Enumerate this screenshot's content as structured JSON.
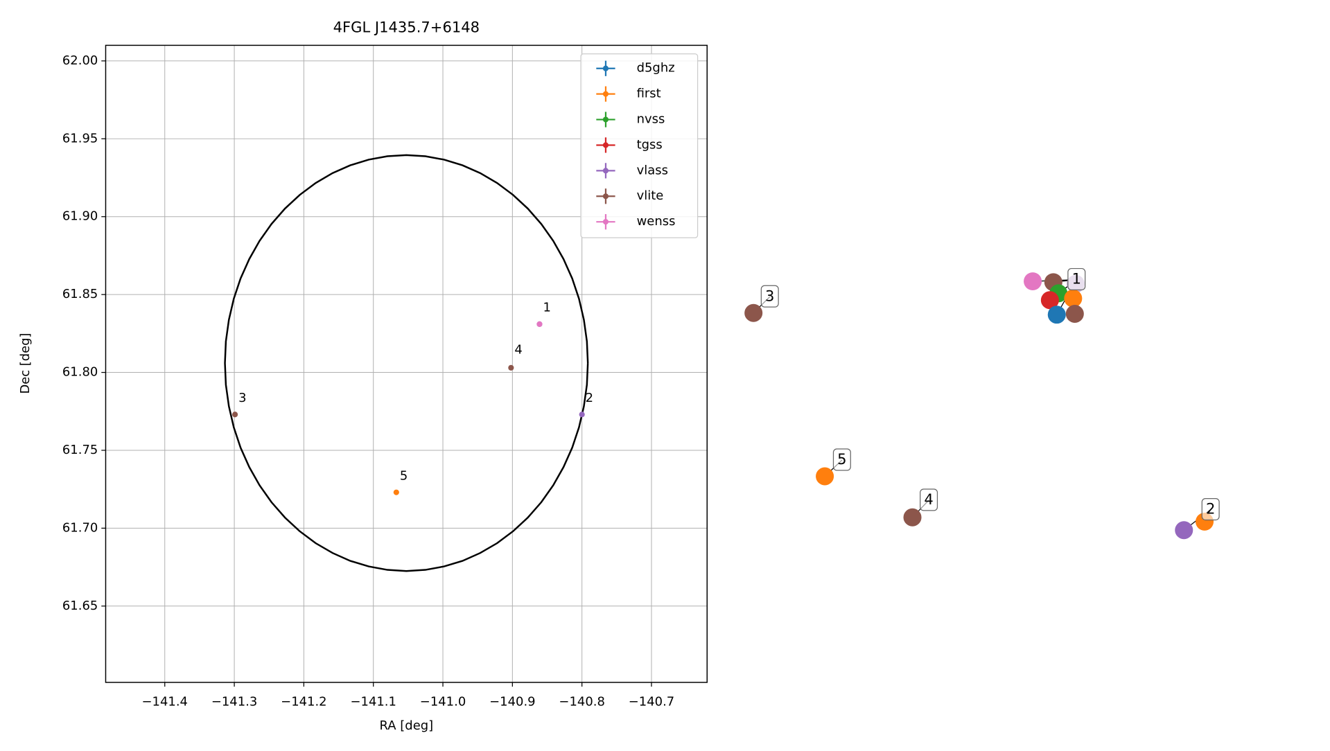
{
  "chart_data": {
    "type": "scatter",
    "title": "4FGL J1435.7+6148",
    "x_label": "RA [deg]",
    "y_label": "Dec [deg]",
    "xlim": [
      -141.485,
      -140.62
    ],
    "ylim": [
      61.601,
      62.01
    ],
    "xticks": [
      {
        "value": -141.4,
        "label": "−141.4"
      },
      {
        "value": -141.3,
        "label": "−141.3"
      },
      {
        "value": -141.2,
        "label": "−141.2"
      },
      {
        "value": -141.1,
        "label": "−141.1"
      },
      {
        "value": -141.0,
        "label": "−141.0"
      },
      {
        "value": -140.9,
        "label": "−140.9"
      },
      {
        "value": -140.8,
        "label": "−140.8"
      },
      {
        "value": -140.7,
        "label": "−140.7"
      }
    ],
    "yticks": [
      61.65,
      {
        "value": 61.7,
        "label": "61.70"
      },
      61.75,
      {
        "value": 61.8,
        "label": "61.80"
      },
      61.85,
      {
        "value": 61.9,
        "label": "61.90"
      },
      61.95,
      {
        "value": 62.0,
        "label": "62.00"
      }
    ],
    "grid": true,
    "legend": "upper right",
    "ellipse": {
      "x": -141.0525,
      "y": 61.806,
      "width": 0.522,
      "height": 0.267,
      "color": "#000000"
    },
    "series": [
      {
        "name": "d5ghz",
        "color": "#1f77b4",
        "x": [],
        "y": []
      },
      {
        "name": "first",
        "color": "#ff7f0e",
        "x": [
          -141.067
        ],
        "y": [
          61.723
        ]
      },
      {
        "name": "nvss",
        "color": "#2ca02c",
        "x": [],
        "y": []
      },
      {
        "name": "tgss",
        "color": "#d62728",
        "x": [],
        "y": []
      },
      {
        "name": "vlass",
        "color": "#9467bd",
        "x": [
          -140.8,
          -140.861
        ],
        "y": [
          61.773,
          61.831
        ]
      },
      {
        "name": "vlite",
        "color": "#8c564b",
        "x": [
          -141.299,
          -140.902
        ],
        "y": [
          61.773,
          61.803
        ]
      },
      {
        "name": "wenss",
        "color": "#e377c2",
        "x": [
          -140.861
        ],
        "y": [
          61.831
        ]
      }
    ],
    "annotations": [
      {
        "text": "1",
        "x": -140.856,
        "y": 61.838
      },
      {
        "text": "2",
        "x": -140.795,
        "y": 61.78
      },
      {
        "text": "3",
        "x": -141.294,
        "y": 61.78
      },
      {
        "text": "4",
        "x": -140.897,
        "y": 61.811
      },
      {
        "text": "5",
        "x": -141.062,
        "y": 61.73
      }
    ]
  },
  "graph": {
    "labels": [
      "1",
      "2",
      "3",
      "4",
      "5"
    ]
  }
}
